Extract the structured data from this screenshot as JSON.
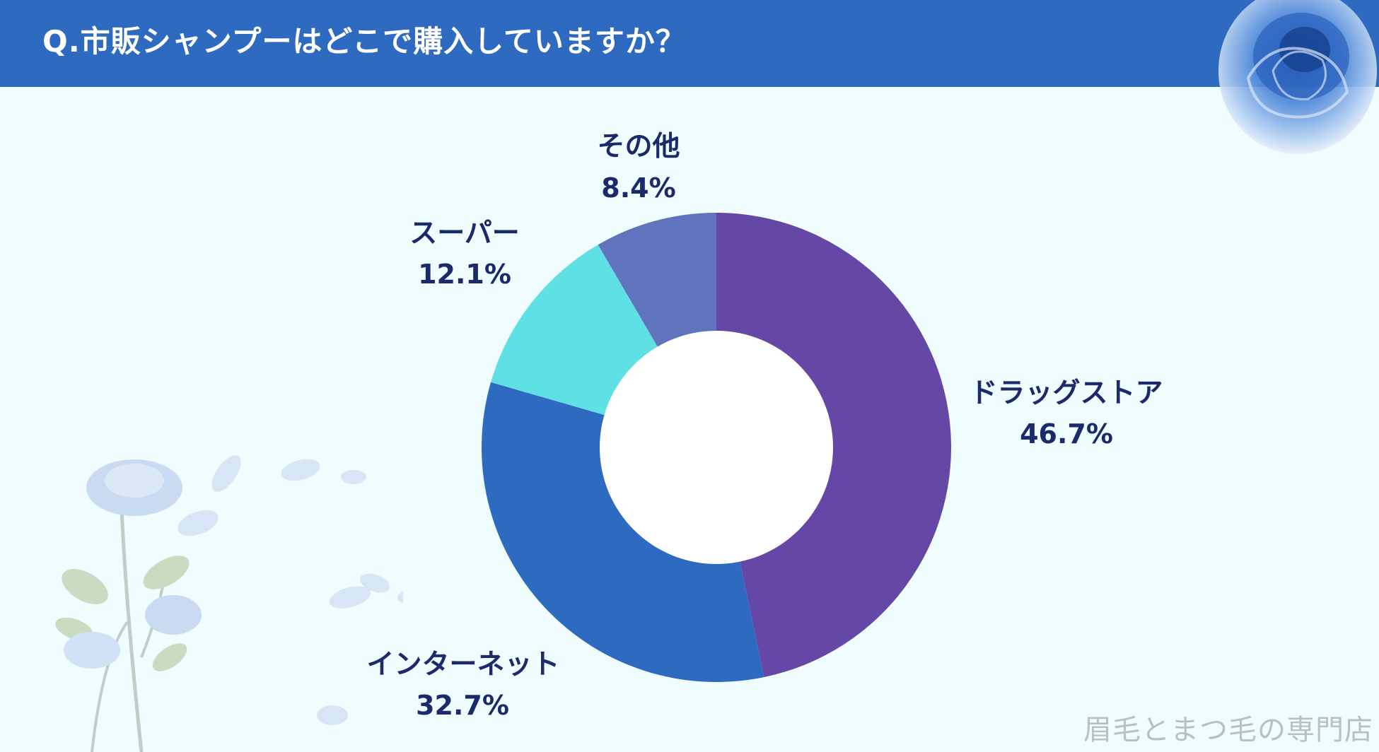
{
  "header": {
    "title": "Q.市販シャンプーはどこで購入していますか？"
  },
  "watermark": "眉毛とまつ毛の専門店",
  "colors": {
    "header_bg": "#2d6ac0",
    "background": "#effdfe",
    "label_text": "#1b2a6b"
  },
  "chart_data": {
    "type": "pie",
    "variant": "donut",
    "title": "Q.市販シャンプーはどこで購入していますか？",
    "slices": [
      {
        "label": "ドラッグストア",
        "value": 46.7,
        "value_label": "46.7%",
        "color": "#6547a5"
      },
      {
        "label": "インターネット",
        "value": 32.7,
        "value_label": "32.7%",
        "color": "#2d6ac0"
      },
      {
        "label": "スーパー",
        "value": 12.1,
        "value_label": "12.1%",
        "color": "#5fe0e5"
      },
      {
        "label": "その他",
        "value": 8.4,
        "value_label": "8.4%",
        "color": "#5f74bd"
      }
    ],
    "start": "top",
    "direction": "clockwise",
    "legend": "none"
  }
}
